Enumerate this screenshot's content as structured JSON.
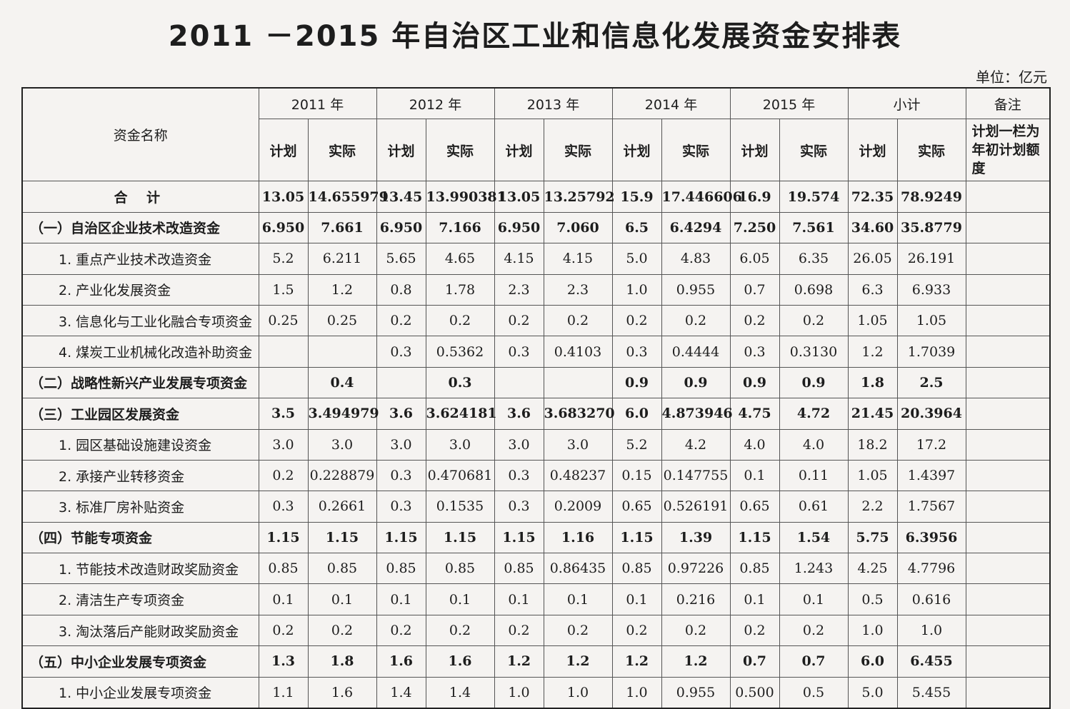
{
  "title": "2011 －2015 年自治区工业和信息化发展资金安排表",
  "unit": "单位：亿元",
  "headers": {
    "name": "资金名称",
    "years": [
      "2011 年",
      "2012 年",
      "2013 年",
      "2014 年",
      "2015 年",
      "小计"
    ],
    "remark": "备注",
    "plan": "计划",
    "actual": "实际"
  },
  "remark_text": "计划一栏为年初计划额度",
  "rows": [
    {
      "name": "合 计",
      "level": "total",
      "values": [
        "13.05",
        "14.655979",
        "13.45",
        "13.990381",
        "13.05",
        "13.25792",
        "15.9",
        "17.446606",
        "16.9",
        "19.574",
        "72.35",
        "78.9249"
      ]
    },
    {
      "name": "（一）自治区企业技术改造资金",
      "level": "group",
      "values": [
        "6.950",
        "7.661",
        "6.950",
        "7.166",
        "6.950",
        "7.060",
        "6.5",
        "6.4294",
        "7.250",
        "7.561",
        "34.60",
        "35.8779"
      ]
    },
    {
      "name": "1. 重点产业技术改造资金",
      "level": "item",
      "values": [
        "5.2",
        "6.211",
        "5.65",
        "4.65",
        "4.15",
        "4.15",
        "5.0",
        "4.83",
        "6.05",
        "6.35",
        "26.05",
        "26.191"
      ]
    },
    {
      "name": "2. 产业化发展资金",
      "level": "item",
      "values": [
        "1.5",
        "1.2",
        "0.8",
        "1.78",
        "2.3",
        "2.3",
        "1.0",
        "0.955",
        "0.7",
        "0.698",
        "6.3",
        "6.933"
      ]
    },
    {
      "name": "3. 信息化与工业化融合专项资金",
      "level": "item",
      "values": [
        "0.25",
        "0.25",
        "0.2",
        "0.2",
        "0.2",
        "0.2",
        "0.2",
        "0.2",
        "0.2",
        "0.2",
        "1.05",
        "1.05"
      ]
    },
    {
      "name": "4. 煤炭工业机械化改造补助资金",
      "level": "item",
      "values": [
        "",
        "",
        "0.3",
        "0.5362",
        "0.3",
        "0.4103",
        "0.3",
        "0.4444",
        "0.3",
        "0.3130",
        "1.2",
        "1.7039"
      ]
    },
    {
      "name": "（二）战略性新兴产业发展专项资金",
      "level": "group",
      "values": [
        "",
        "0.4",
        "",
        "0.3",
        "",
        "",
        "0.9",
        "0.9",
        "0.9",
        "0.9",
        "1.8",
        "2.5"
      ]
    },
    {
      "name": "（三）工业园区发展资金",
      "level": "group",
      "values": [
        "3.5",
        "3.494979",
        "3.6",
        "3.624181",
        "3.6",
        "3.683270",
        "6.0",
        "4.873946",
        "4.75",
        "4.72",
        "21.45",
        "20.3964"
      ]
    },
    {
      "name": "1. 园区基础设施建设资金",
      "level": "item",
      "values": [
        "3.0",
        "3.0",
        "3.0",
        "3.0",
        "3.0",
        "3.0",
        "5.2",
        "4.2",
        "4.0",
        "4.0",
        "18.2",
        "17.2"
      ]
    },
    {
      "name": "2. 承接产业转移资金",
      "level": "item",
      "values": [
        "0.2",
        "0.228879",
        "0.3",
        "0.470681",
        "0.3",
        "0.48237",
        "0.15",
        "0.147755",
        "0.1",
        "0.11",
        "1.05",
        "1.4397"
      ]
    },
    {
      "name": "3. 标准厂房补贴资金",
      "level": "item",
      "values": [
        "0.3",
        "0.2661",
        "0.3",
        "0.1535",
        "0.3",
        "0.2009",
        "0.65",
        "0.526191",
        "0.65",
        "0.61",
        "2.2",
        "1.7567"
      ]
    },
    {
      "name": "（四）节能专项资金",
      "level": "group",
      "values": [
        "1.15",
        "1.15",
        "1.15",
        "1.15",
        "1.15",
        "1.16",
        "1.15",
        "1.39",
        "1.15",
        "1.54",
        "5.75",
        "6.3956"
      ]
    },
    {
      "name": "1. 节能技术改造财政奖励资金",
      "level": "item",
      "values": [
        "0.85",
        "0.85",
        "0.85",
        "0.85",
        "0.85",
        "0.86435",
        "0.85",
        "0.97226",
        "0.85",
        "1.243",
        "4.25",
        "4.7796"
      ]
    },
    {
      "name": "2. 清洁生产专项资金",
      "level": "item",
      "values": [
        "0.1",
        "0.1",
        "0.1",
        "0.1",
        "0.1",
        "0.1",
        "0.1",
        "0.216",
        "0.1",
        "0.1",
        "0.5",
        "0.616"
      ]
    },
    {
      "name": "3. 淘汰落后产能财政奖励资金",
      "level": "item",
      "values": [
        "0.2",
        "0.2",
        "0.2",
        "0.2",
        "0.2",
        "0.2",
        "0.2",
        "0.2",
        "0.2",
        "0.2",
        "1.0",
        "1.0"
      ]
    },
    {
      "name": "（五）中小企业发展专项资金",
      "level": "group",
      "values": [
        "1.3",
        "1.8",
        "1.6",
        "1.6",
        "1.2",
        "1.2",
        "1.2",
        "1.2",
        "0.7",
        "0.7",
        "6.0",
        "6.455"
      ]
    },
    {
      "name": "1. 中小企业发展专项资金",
      "level": "item",
      "values": [
        "1.1",
        "1.6",
        "1.4",
        "1.4",
        "1.0",
        "1.0",
        "1.0",
        "0.955",
        "0.500",
        "0.5",
        "5.0",
        "5.455"
      ]
    }
  ]
}
